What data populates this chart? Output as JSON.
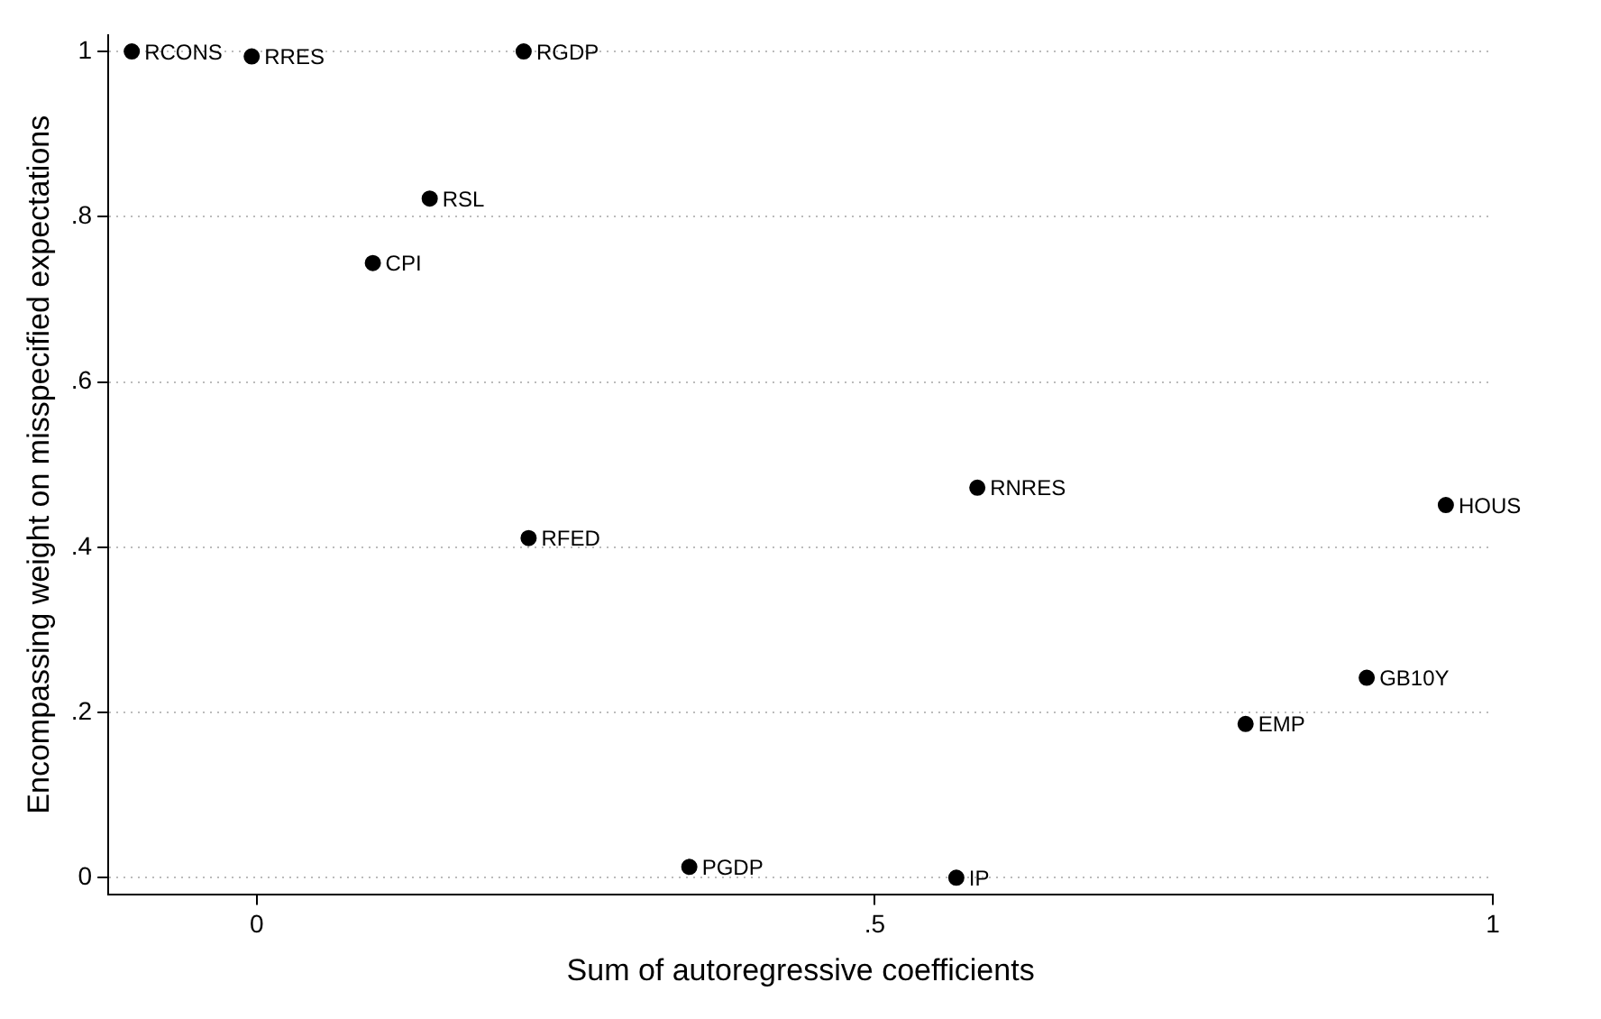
{
  "chart_data": {
    "type": "scatter",
    "xlabel": "Sum of autoregressive coefficients",
    "ylabel": "Encompassing weight on misspecified expectations",
    "x": [
      -0.101,
      -0.004,
      0.216,
      0.14,
      0.094,
      0.22,
      0.583,
      0.962,
      0.898,
      0.8,
      0.35,
      0.566
    ],
    "values": [
      1.0,
      0.994,
      1.0,
      0.822,
      0.744,
      0.411,
      0.472,
      0.451,
      0.242,
      0.186,
      0.013,
      0.0
    ],
    "color": "#000000",
    "marker": "circle",
    "annotations": [
      {
        "text": "RCONS",
        "x": -0.101,
        "y": 1.0
      },
      {
        "text": "RRES",
        "x": -0.004,
        "y": 0.994
      },
      {
        "text": "RGDP",
        "x": 0.216,
        "y": 1.0
      },
      {
        "text": "RSL",
        "x": 0.14,
        "y": 0.822
      },
      {
        "text": "CPI",
        "x": 0.094,
        "y": 0.744
      },
      {
        "text": "RFED",
        "x": 0.22,
        "y": 0.411
      },
      {
        "text": "RNRES",
        "x": 0.583,
        "y": 0.472
      },
      {
        "text": "HOUS",
        "x": 0.962,
        "y": 0.451
      },
      {
        "text": "GB10Y",
        "x": 0.898,
        "y": 0.242
      },
      {
        "text": "EMP",
        "x": 0.8,
        "y": 0.186
      },
      {
        "text": "PGDP",
        "x": 0.35,
        "y": 0.013
      },
      {
        "text": "IP",
        "x": 0.566,
        "y": 0.0
      }
    ],
    "xlim": [
      -0.12,
      1.0
    ],
    "ylim": [
      -0.02,
      1.02
    ],
    "xticks": [
      0,
      {
        "value": 0.5,
        "label": ".5"
      },
      1
    ],
    "yticks": [
      0,
      {
        "value": 0.2,
        "label": ".2"
      },
      {
        "value": 0.4,
        "label": ".4"
      },
      {
        "value": 0.6,
        "label": ".6"
      },
      {
        "value": 0.8,
        "label": ".8"
      },
      1
    ],
    "grid": "y",
    "legend": false
  }
}
